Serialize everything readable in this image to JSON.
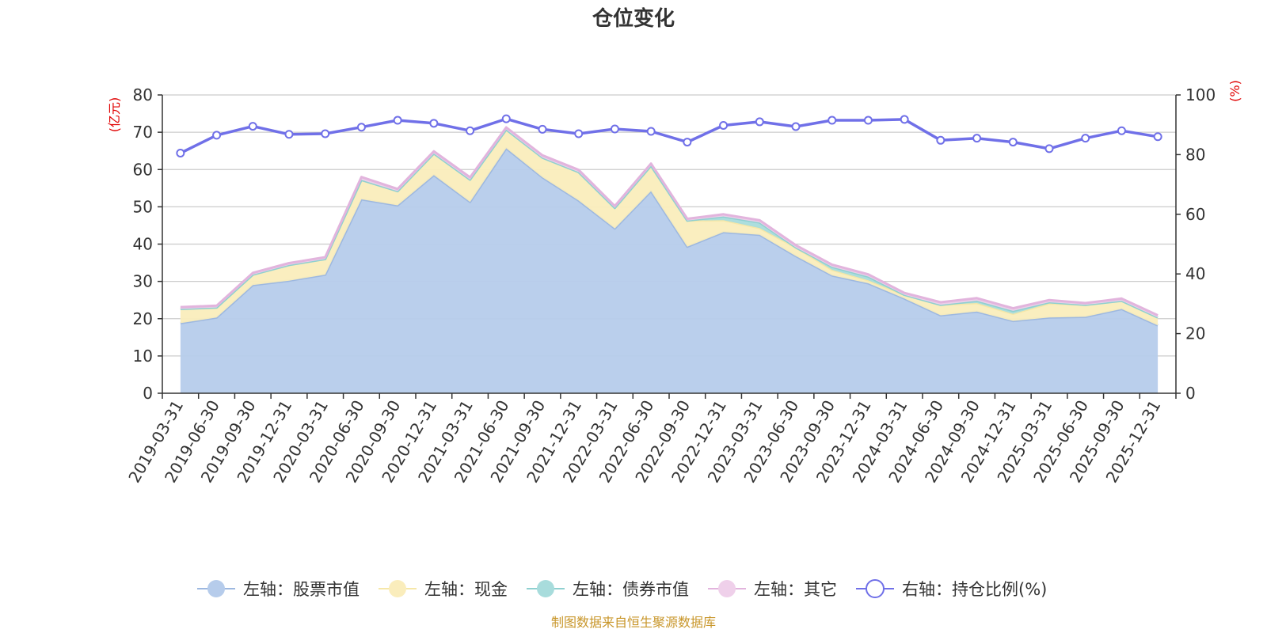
{
  "chart_data": {
    "type": "area",
    "title": "仓位变化",
    "left_axis_unit": "(亿元)",
    "right_axis_unit": "(%)",
    "left_ylim": [
      0,
      80
    ],
    "left_ticks": [
      0,
      10,
      20,
      30,
      40,
      50,
      60,
      70,
      80
    ],
    "right_ylim": [
      0,
      100
    ],
    "right_ticks": [
      0,
      20,
      40,
      60,
      80,
      100
    ],
    "categories": [
      "2019-03-31",
      "2019-06-30",
      "2019-09-30",
      "2019-12-31",
      "2020-03-31",
      "2020-06-30",
      "2020-09-30",
      "2020-12-31",
      "2021-03-31",
      "2021-06-30",
      "2021-09-30",
      "2021-12-31",
      "2022-03-31",
      "2022-06-30",
      "2022-09-30",
      "2022-12-31",
      "2023-03-31",
      "2023-06-30",
      "2023-09-30",
      "2023-12-31",
      "2024-03-31",
      "2024-06-30",
      "2024-09-30",
      "2024-12-31",
      "2025-03-31",
      "2025-06-30",
      "2025-09-30",
      "2025-12-31"
    ],
    "series": [
      {
        "name": "左轴：股票市值",
        "axis": "left",
        "color": "#9db8e0",
        "fill": "#b6cceb",
        "values": [
          18.8,
          20.3,
          29.0,
          30.2,
          31.8,
          52.0,
          50.4,
          58.5,
          51.3,
          65.7,
          57.9,
          51.7,
          44.2,
          54.2,
          39.3,
          43.2,
          42.5,
          36.8,
          31.6,
          29.5,
          25.4,
          20.9,
          21.9,
          19.4,
          20.3,
          20.5,
          22.6,
          18.2
        ]
      },
      {
        "name": "左轴：现金",
        "axis": "left",
        "color": "#f6e7a8",
        "fill": "#faedbc",
        "values": [
          3.8,
          2.7,
          2.8,
          4.2,
          4.2,
          5.2,
          3.8,
          5.8,
          6.0,
          5.0,
          5.3,
          7.6,
          5.5,
          6.8,
          7.0,
          3.2,
          1.8,
          2.3,
          1.5,
          0.8,
          1.0,
          2.8,
          2.3,
          1.9,
          3.8,
          3.2,
          2.2,
          2.1
        ]
      },
      {
        "name": "左轴：债券市值",
        "axis": "left",
        "color": "#8fd0d0",
        "fill": "#a8dcdc",
        "values": [
          0,
          0,
          0,
          0,
          0,
          0,
          0,
          0,
          0,
          0,
          0,
          0,
          0,
          0,
          0,
          1.0,
          1.5,
          0,
          0.8,
          1.0,
          0,
          0,
          0.6,
          0.8,
          0.3,
          0,
          0,
          0
        ]
      },
      {
        "name": "左轴：其它",
        "axis": "left",
        "color": "#e2b4dd",
        "fill": "#efd0ea",
        "values": [
          0.5,
          0.5,
          0.5,
          0.5,
          0.5,
          0.8,
          0.6,
          0.6,
          0.6,
          0.6,
          0.6,
          0.6,
          0.5,
          0.6,
          0.5,
          0.6,
          0.6,
          0.6,
          0.6,
          0.6,
          0.5,
          0.7,
          0.7,
          0.7,
          0.6,
          0.5,
          0.6,
          0.6
        ]
      },
      {
        "name": "右轴：持仓比例(%)",
        "axis": "right",
        "color": "#7070e8",
        "values": [
          80.5,
          86.5,
          89.5,
          86.8,
          87.0,
          89.2,
          91.5,
          90.5,
          88.0,
          92.0,
          88.5,
          87.0,
          88.6,
          87.8,
          84.2,
          89.8,
          91.0,
          89.4,
          91.5,
          91.5,
          91.8,
          84.8,
          85.5,
          84.2,
          82.0,
          85.5,
          88.0,
          86.0
        ]
      }
    ],
    "legend_position": "bottom",
    "grid": true
  },
  "footer": {
    "source": "制图数据来自恒生聚源数据库"
  }
}
